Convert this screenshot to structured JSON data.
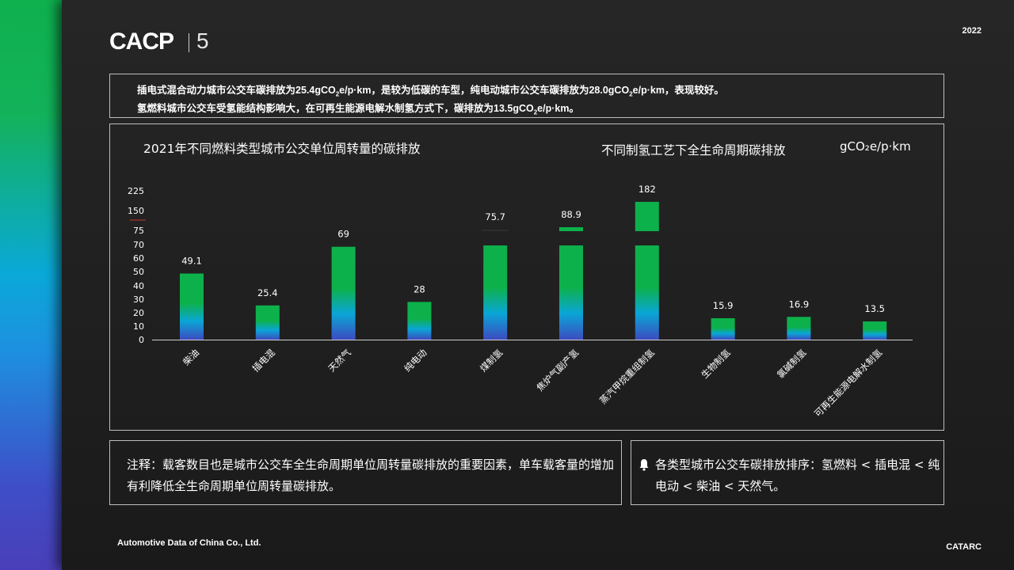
{
  "brand": {
    "logo_text": "CACP",
    "logo_number": "5",
    "year": "2022",
    "footer_left": "Automotive Data of China Co., Ltd.",
    "footer_right": "CATARC"
  },
  "summary": {
    "line1_a": "插电式混合动力城市公交车碳排放为25.4gCO",
    "line1_b": "e/p·km，是较为低碳的车型，纯电动城市公交车碳排放为28.0gCO",
    "line1_c": "e/p·km，表现较好。",
    "line2_a": "氢燃料城市公交车受氢能结构影响大，在可再生能源电解水制氢方式下，碳排放为13.5gCO",
    "line2_b": "e/p·km。",
    "subscript": "2"
  },
  "chart_data": {
    "type": "bar",
    "title": "2021年不同燃料类型城市公交单位周转量的碳排放",
    "subtitle": "不同制氢工艺下全生命周期碳排放",
    "unit": "gCO₂e/p·km",
    "categories": [
      "柴油",
      "插电混",
      "天然气",
      "纯电动",
      "煤制氢",
      "焦炉气副产氢",
      "蒸汽甲烷重组制氢",
      "生物制氢",
      "氯碱制氢",
      "可再生能源电解水制氢"
    ],
    "values": [
      49.1,
      25.4,
      69,
      28,
      75.7,
      88.9,
      182,
      15.9,
      16.9,
      13.5
    ],
    "value_labels": [
      "49.1",
      "25.4",
      "69",
      "28",
      "75.7",
      "88.9",
      "182",
      "15.9",
      "16.9",
      "13.5"
    ],
    "yticks": [
      "0",
      "10",
      "20",
      "30",
      "40",
      "50",
      "60",
      "70",
      "75",
      "150",
      "225"
    ],
    "axis_break": "broken y-axis between 70 and 75; bars above 70 drawn with a gap",
    "colors": {
      "top": "#0db14b",
      "mid": "#0aa6d6",
      "bottom": "#3d4bc0",
      "break_mark": "#c0392b"
    }
  },
  "note": {
    "text": "注释：载客数目也是城市公交车全生命周期单位周转量碳排放的重要因素，单车载客量的增加有利降低全生命周期单位周转量碳排放。"
  },
  "ranking": {
    "icon": "bell-icon",
    "text": "各类型城市公交车碳排放排序：氢燃料 < 插电混 < 纯电动 < 柴油 < 天然气。"
  }
}
